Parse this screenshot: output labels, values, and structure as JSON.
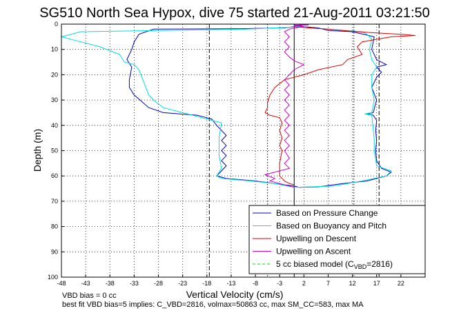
{
  "chart_data": {
    "type": "line",
    "title": "SG510 North Sea Hypox, dive 75 started 21-Aug-2011 03:21:50",
    "xlabel": "Vertical Velocity (cm/s)",
    "ylabel": "Depth (m)",
    "xlim": [
      -48,
      27
    ],
    "ylim": [
      0,
      100
    ],
    "y_reversed": true,
    "grid": true,
    "legend_position": "bottom-right",
    "x_ticks": [
      "-48",
      "-43",
      "-38",
      "-33",
      "-28",
      "-23",
      "-18",
      "-13",
      "-8",
      "-3",
      "2",
      "7",
      "12",
      "17",
      "22"
    ],
    "y_ticks": [
      "0",
      "10",
      "20",
      "30",
      "40",
      "50",
      "60",
      "70",
      "80",
      "90",
      "100"
    ],
    "vertical_lines": [
      {
        "x": -17.5,
        "style": "dashed"
      },
      {
        "x": -5.5,
        "style": "dotted"
      },
      {
        "x": 0,
        "style": "solid"
      },
      {
        "x": 12.3,
        "style": "dotted"
      },
      {
        "x": 17.5,
        "style": "dashed"
      }
    ],
    "series": [
      {
        "name": "Based on Pressure Change",
        "color": "#0000bb",
        "points": [
          [
            0,
            1
          ],
          [
            -2,
            1.5
          ],
          [
            -11,
            1.8
          ],
          [
            -29,
            2
          ],
          [
            -32,
            4
          ],
          [
            -33,
            7
          ],
          [
            -33.5,
            10
          ],
          [
            -34.5,
            14
          ],
          [
            -33.5,
            17
          ],
          [
            -34,
            22
          ],
          [
            -34,
            25
          ],
          [
            -33,
            28
          ],
          [
            -30,
            33
          ],
          [
            -27,
            35
          ],
          [
            -20,
            36
          ],
          [
            -18,
            37
          ],
          [
            -17,
            37.5
          ],
          [
            -16,
            40
          ],
          [
            -15,
            42
          ],
          [
            -14,
            44
          ],
          [
            -15,
            46
          ],
          [
            -14,
            48
          ],
          [
            -15,
            50
          ],
          [
            -14,
            52
          ],
          [
            -15,
            54
          ],
          [
            -14,
            56
          ],
          [
            -15,
            58
          ],
          [
            -16,
            60
          ],
          [
            -14,
            61
          ],
          [
            -8,
            62
          ],
          [
            -4,
            63
          ],
          [
            0,
            64
          ],
          [
            1,
            64.5
          ],
          [
            5,
            64.3
          ],
          [
            10,
            63
          ],
          [
            15,
            62
          ],
          [
            19,
            60
          ],
          [
            20,
            58.5
          ],
          [
            18,
            57
          ],
          [
            17,
            54
          ],
          [
            16.8,
            50
          ],
          [
            17,
            46
          ],
          [
            16.8,
            42
          ],
          [
            17,
            38
          ],
          [
            16.3,
            36
          ],
          [
            15,
            35.5
          ],
          [
            16.3,
            35
          ],
          [
            17,
            30
          ],
          [
            16,
            25
          ],
          [
            17,
            21
          ],
          [
            18,
            19
          ],
          [
            17,
            17
          ],
          [
            19,
            16
          ],
          [
            17,
            14
          ],
          [
            16,
            10
          ],
          [
            16.5,
            5
          ],
          [
            12,
            3
          ],
          [
            7,
            2.5
          ],
          [
            5,
            1.5
          ],
          [
            2,
            1
          ],
          [
            1,
            0.5
          ],
          [
            0,
            0.3
          ]
        ]
      },
      {
        "name": "Based on Buoyancy and Pitch",
        "color": "#00dddd",
        "points": [
          [
            0,
            1.2
          ],
          [
            -10,
            2
          ],
          [
            -44,
            3
          ],
          [
            -48,
            5
          ],
          [
            -44,
            7
          ],
          [
            -40,
            9
          ],
          [
            -36,
            12
          ],
          [
            -35,
            15
          ],
          [
            -33,
            16
          ],
          [
            -32,
            18
          ],
          [
            -31,
            23
          ],
          [
            -30,
            28
          ],
          [
            -29,
            30
          ],
          [
            -27,
            33
          ],
          [
            -23,
            35
          ],
          [
            -19,
            37
          ],
          [
            -17,
            38
          ],
          [
            -15,
            39
          ],
          [
            -15.5,
            45
          ],
          [
            -15.5,
            52
          ],
          [
            -15,
            57
          ],
          [
            -16,
            60
          ],
          [
            -15,
            61
          ],
          [
            -9,
            62
          ],
          [
            -4,
            63
          ],
          [
            0,
            64.5
          ],
          [
            8,
            64
          ],
          [
            14,
            62
          ],
          [
            19,
            60
          ],
          [
            20,
            58
          ],
          [
            17,
            56
          ],
          [
            16.5,
            50
          ],
          [
            16.5,
            45
          ],
          [
            16.2,
            40
          ],
          [
            16,
            36
          ],
          [
            14.5,
            35.5
          ],
          [
            16,
            35
          ],
          [
            16.5,
            30
          ],
          [
            16,
            25
          ],
          [
            16,
            20
          ],
          [
            17,
            17
          ],
          [
            16,
            14
          ],
          [
            15.5,
            10
          ],
          [
            16,
            6
          ],
          [
            15,
            4
          ],
          [
            14,
            3
          ],
          [
            7,
            2
          ],
          [
            3,
            1.5
          ],
          [
            2,
            1
          ],
          [
            0,
            0.8
          ]
        ]
      },
      {
        "name": "Upwelling on Descent",
        "color": "#dd0000",
        "points": [
          [
            0,
            1
          ],
          [
            3,
            1.5
          ],
          [
            7,
            2
          ],
          [
            10,
            2.5
          ],
          [
            13,
            3
          ],
          [
            17,
            3.5
          ],
          [
            22,
            4
          ],
          [
            25,
            4.5
          ],
          [
            20,
            5
          ],
          [
            14,
            7
          ],
          [
            13,
            9
          ],
          [
            14,
            12
          ],
          [
            11,
            14
          ],
          [
            10,
            16
          ],
          [
            5,
            18
          ],
          [
            2,
            20
          ],
          [
            -2,
            22
          ],
          [
            -4,
            25
          ],
          [
            -5,
            28
          ],
          [
            -5.5,
            31
          ],
          [
            -5.5,
            33
          ],
          [
            -6,
            35
          ],
          [
            -5,
            36
          ],
          [
            -3,
            37
          ],
          [
            -2.5,
            39
          ],
          [
            -3,
            42
          ],
          [
            -2.5,
            45
          ],
          [
            -3,
            48
          ],
          [
            -2.5,
            50
          ],
          [
            -3,
            55
          ],
          [
            -3,
            60
          ],
          [
            -2,
            62
          ],
          [
            -1,
            63
          ],
          [
            0,
            63.5
          ]
        ]
      },
      {
        "name": "Upwelling on Ascent",
        "color": "#cc00cc",
        "points": [
          [
            0,
            64.5
          ],
          [
            -3,
            63
          ],
          [
            -5,
            62
          ],
          [
            -4,
            61
          ],
          [
            -6,
            59.5
          ],
          [
            -3,
            58
          ],
          [
            -1,
            57
          ],
          [
            -2,
            55
          ],
          [
            -1,
            53
          ],
          [
            -2,
            50
          ],
          [
            -1,
            48
          ],
          [
            -2,
            46
          ],
          [
            -1,
            44
          ],
          [
            -2,
            42
          ],
          [
            -1,
            40
          ],
          [
            -2,
            38
          ],
          [
            -1,
            36
          ],
          [
            -2,
            34
          ],
          [
            -1,
            32
          ],
          [
            -2,
            30
          ],
          [
            -1,
            28
          ],
          [
            -2,
            26
          ],
          [
            -1,
            24
          ],
          [
            -2,
            22
          ],
          [
            -1,
            20
          ],
          [
            0,
            18
          ],
          [
            2,
            16
          ],
          [
            0,
            14.5
          ],
          [
            -1,
            13
          ],
          [
            -2,
            11
          ],
          [
            -1,
            9
          ],
          [
            -2,
            7
          ],
          [
            -1,
            5
          ],
          [
            -2,
            3
          ],
          [
            -1,
            2
          ],
          [
            0,
            1.5
          ],
          [
            2,
            1
          ],
          [
            0,
            0.5
          ],
          [
            3,
            0.3
          ],
          [
            0,
            0
          ]
        ]
      }
    ],
    "legend": [
      {
        "label": "Based on Pressure Change",
        "color": "#0000bb",
        "style": "solid"
      },
      {
        "label": "Based on Buoyancy and Pitch",
        "color": "#00dddd",
        "style": "solid"
      },
      {
        "label": "Upwelling on Descent",
        "color": "#dd0000",
        "style": "solid"
      },
      {
        "label": "Upwelling on Ascent",
        "color": "#cc00cc",
        "style": "solid"
      },
      {
        "label": "5 cc biased model (C",
        "subscript": "VBD",
        "suffix": "=2816)",
        "color": "#00dd00",
        "style": "dashed"
      }
    ],
    "annotations": {
      "line1": "VBD bias = 0 cc",
      "line2": "best fit VBD bias=5 implies: C_VBD=2816, volmax=50863 cc, max SM_CC=583, max MA"
    }
  }
}
